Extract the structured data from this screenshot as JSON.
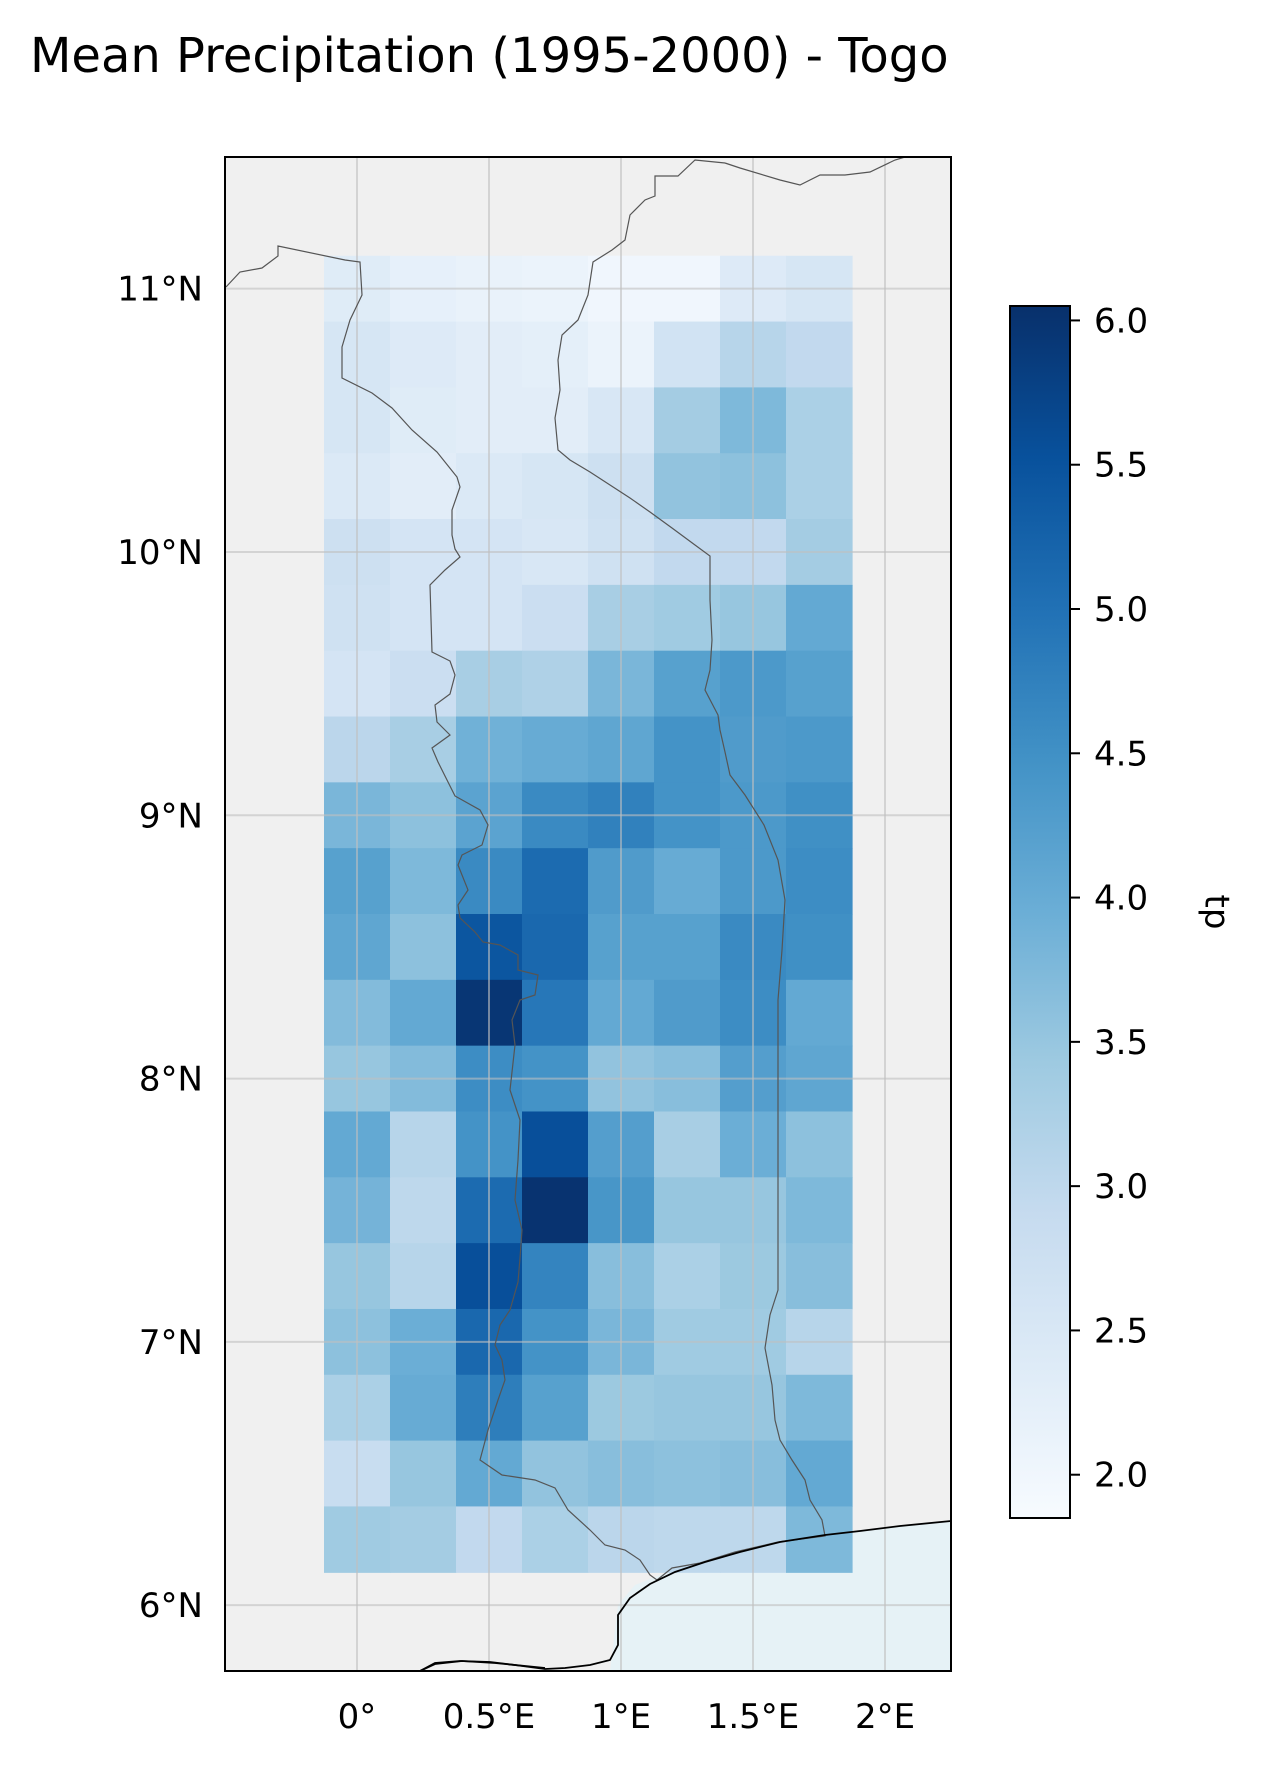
{
  "chart_data": {
    "type": "heatmap",
    "title": "Mean Precipitation (1995-2000) - Togo",
    "colorbar_label": "tp",
    "colormap": "Blues",
    "color_range": [
      1.85,
      6.05
    ],
    "colorbar_ticks": [
      "2.0",
      "2.5",
      "3.0",
      "3.5",
      "4.0",
      "4.5",
      "5.0",
      "5.5",
      "6.0"
    ],
    "colorbar_tick_values": [
      2.0,
      2.5,
      3.0,
      3.5,
      4.0,
      4.5,
      5.0,
      5.5,
      6.0
    ],
    "xlim": [
      -0.5,
      2.25
    ],
    "ylim": [
      5.75,
      11.5
    ],
    "x_ticks": [
      "0°",
      "0.5°E",
      "1°E",
      "1.5°E",
      "2°E"
    ],
    "x_tick_values": [
      0,
      0.5,
      1.0,
      1.5,
      2.0
    ],
    "y_ticks": [
      "6°N",
      "7°N",
      "8°N",
      "9°N",
      "10°N",
      "11°N"
    ],
    "y_tick_values": [
      6,
      7,
      8,
      9,
      10,
      11
    ],
    "grid": true,
    "lon_centers": [
      0.0,
      0.25,
      0.5,
      0.75,
      1.0,
      1.25,
      1.5,
      1.75
    ],
    "lat_centers": [
      11.0,
      10.75,
      10.5,
      10.25,
      10.0,
      9.75,
      9.5,
      9.25,
      9.0,
      8.75,
      8.5,
      8.25,
      8.0,
      7.75,
      7.5,
      7.25,
      7.0,
      6.75,
      6.5,
      6.25
    ],
    "grid_resolution_deg": 0.25,
    "values": [
      [
        2.35,
        2.2,
        2.15,
        2.1,
        2.0,
        2.0,
        2.4,
        2.55
      ],
      [
        2.55,
        2.4,
        2.3,
        2.25,
        2.1,
        2.65,
        3.1,
        2.95
      ],
      [
        2.55,
        2.35,
        2.3,
        2.3,
        2.5,
        3.35,
        3.75,
        3.25
      ],
      [
        2.45,
        2.3,
        2.45,
        2.55,
        2.75,
        3.55,
        3.6,
        3.25
      ],
      [
        2.75,
        2.6,
        2.6,
        2.5,
        2.7,
        2.95,
        2.95,
        3.35
      ],
      [
        2.7,
        2.6,
        2.6,
        2.8,
        3.3,
        3.4,
        3.5,
        4.05
      ],
      [
        2.6,
        2.8,
        3.3,
        3.2,
        3.8,
        4.2,
        4.35,
        4.2
      ],
      [
        3.05,
        3.3,
        3.9,
        4.0,
        4.1,
        4.45,
        4.3,
        4.35
      ],
      [
        3.8,
        3.6,
        4.15,
        4.6,
        4.75,
        4.45,
        4.35,
        4.5
      ],
      [
        4.2,
        3.75,
        4.6,
        5.1,
        4.3,
        4.0,
        4.35,
        4.55
      ],
      [
        4.1,
        3.6,
        5.45,
        5.15,
        4.2,
        4.2,
        4.6,
        4.5
      ],
      [
        3.7,
        4.05,
        5.95,
        4.9,
        4.05,
        4.3,
        4.55,
        4.05
      ],
      [
        3.5,
        3.7,
        4.55,
        4.45,
        3.55,
        3.65,
        4.25,
        4.1
      ],
      [
        4.05,
        3.1,
        4.45,
        5.55,
        4.25,
        3.3,
        3.95,
        3.6
      ],
      [
        3.85,
        3.0,
        5.1,
        6.0,
        4.4,
        3.5,
        3.5,
        3.75
      ],
      [
        3.5,
        3.1,
        5.55,
        4.7,
        3.65,
        3.25,
        3.45,
        3.65
      ],
      [
        3.6,
        3.95,
        5.15,
        4.45,
        3.8,
        3.4,
        3.4,
        3.1
      ],
      [
        3.25,
        4.0,
        4.8,
        4.2,
        3.45,
        3.5,
        3.5,
        3.75
      ],
      [
        2.85,
        3.5,
        4.05,
        3.55,
        3.65,
        3.6,
        3.65,
        4.05
      ],
      [
        3.4,
        3.35,
        2.95,
        3.25,
        3.05,
        3.0,
        3.0,
        3.75
      ]
    ]
  },
  "colors": {
    "land": "#f0f0f0",
    "ocean": "#e6f2f6",
    "grid": "#cfcfcf",
    "border": "#555555",
    "coast": "#000000"
  }
}
